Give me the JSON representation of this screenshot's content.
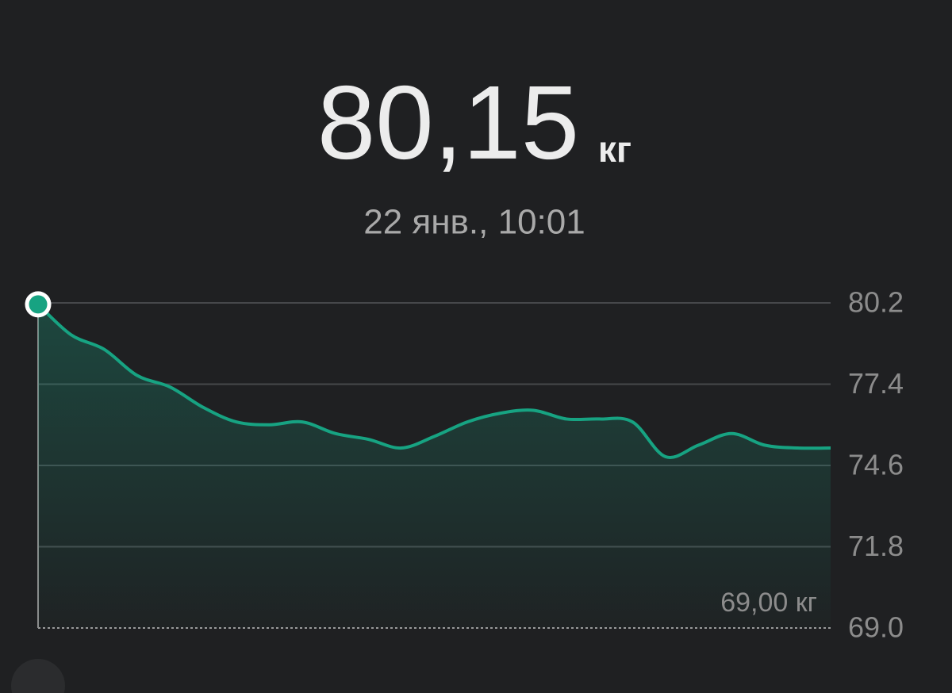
{
  "header": {
    "value": "80,15",
    "unit": "кг",
    "date": "22 янв., 10:01"
  },
  "chart_data": {
    "type": "area",
    "values": [
      80.15,
      79.1,
      78.6,
      77.7,
      77.3,
      76.6,
      76.1,
      76.0,
      76.1,
      75.7,
      75.5,
      75.2,
      75.6,
      76.1,
      76.4,
      76.5,
      76.2,
      76.2,
      76.1,
      74.9,
      75.3,
      75.7,
      75.3,
      75.2,
      75.2
    ],
    "color": "#17a382",
    "ylim": [
      69,
      80.2
    ],
    "yticks": [
      80.2,
      77.4,
      74.6,
      71.8,
      {
        "value": 69,
        "label": "69.0"
      }
    ],
    "grid": true,
    "annotation": "69,00 кг"
  }
}
